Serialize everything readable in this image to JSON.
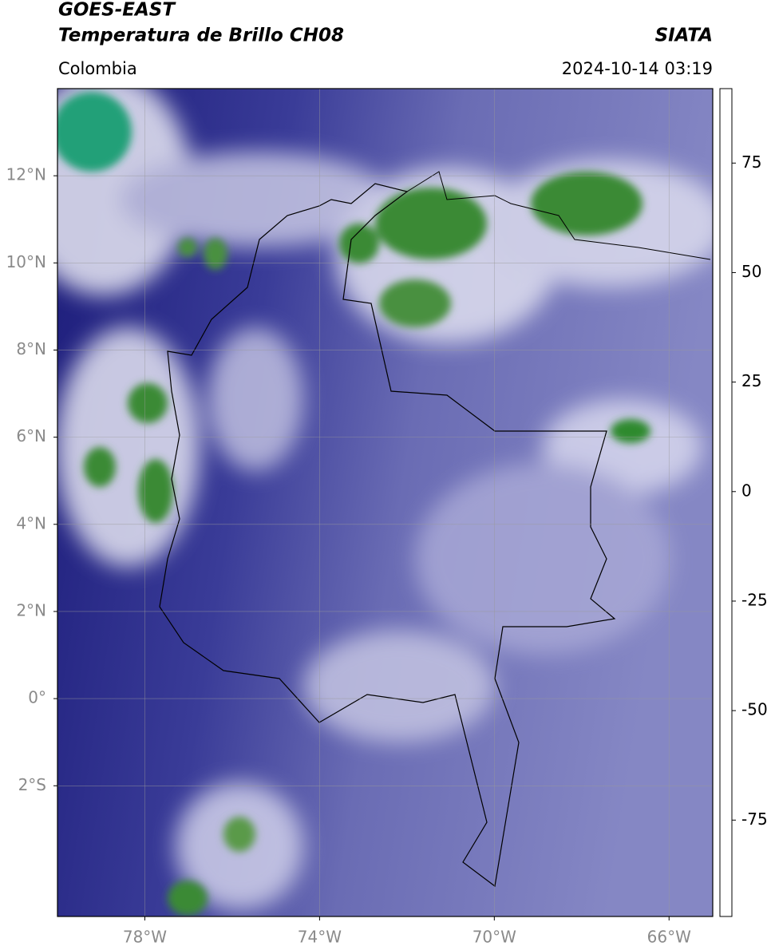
{
  "chart_data": {
    "type": "map",
    "title": "GOES-EAST",
    "subtitle": "Temperatura de Brillo CH08",
    "source": "SIATA",
    "region": "Colombia",
    "timestamp": "2024-10-14 03:19",
    "xlim": [
      -80,
      -65
    ],
    "ylim": [
      -5,
      14
    ],
    "xticks": [
      {
        "value": -78,
        "label": "78°W"
      },
      {
        "value": -74,
        "label": "74°W"
      },
      {
        "value": -70,
        "label": "70°W"
      },
      {
        "value": -66,
        "label": "66°W"
      }
    ],
    "yticks": [
      {
        "value": 12,
        "label": "12°N"
      },
      {
        "value": 10,
        "label": "10°N"
      },
      {
        "value": 8,
        "label": "8°N"
      },
      {
        "value": 6,
        "label": "6°N"
      },
      {
        "value": 4,
        "label": "4°N"
      },
      {
        "value": 2,
        "label": "2°N"
      },
      {
        "value": 0,
        "label": "0°"
      },
      {
        "value": -2,
        "label": "2°S"
      }
    ],
    "grid": true,
    "colorbar": {
      "lim": [
        -97,
        92
      ],
      "ticks": [
        75,
        50,
        25,
        0,
        -25,
        -50,
        -75
      ],
      "stops": [
        {
          "value": -97,
          "color": "#ffffff"
        },
        {
          "value": -93,
          "color": "#ffffff"
        },
        {
          "value": -92.5,
          "color": "#00e0e0"
        },
        {
          "value": -80,
          "color": "#1f9a80"
        },
        {
          "value": -68,
          "color": "#2e8a2e"
        },
        {
          "value": -58,
          "color": "#5a9a48"
        },
        {
          "value": -52,
          "color": "#e6efe0"
        },
        {
          "value": -50,
          "color": "#ffffff"
        },
        {
          "value": -40,
          "color": "#a8a8d4"
        },
        {
          "value": -31,
          "color": "#2c2c8c"
        },
        {
          "value": -27,
          "color": "#08086c"
        },
        {
          "value": -25,
          "color": "#404040"
        },
        {
          "value": -20,
          "color": "#6a6a40"
        },
        {
          "value": -15,
          "color": "#e8e800"
        },
        {
          "value": -6,
          "color": "#ff9a00"
        },
        {
          "value": 0,
          "color": "#ff5a00"
        },
        {
          "value": 8,
          "color": "#ff0000"
        },
        {
          "value": 8.5,
          "color": "#000000"
        },
        {
          "value": 92,
          "color": "#000000"
        }
      ]
    }
  }
}
